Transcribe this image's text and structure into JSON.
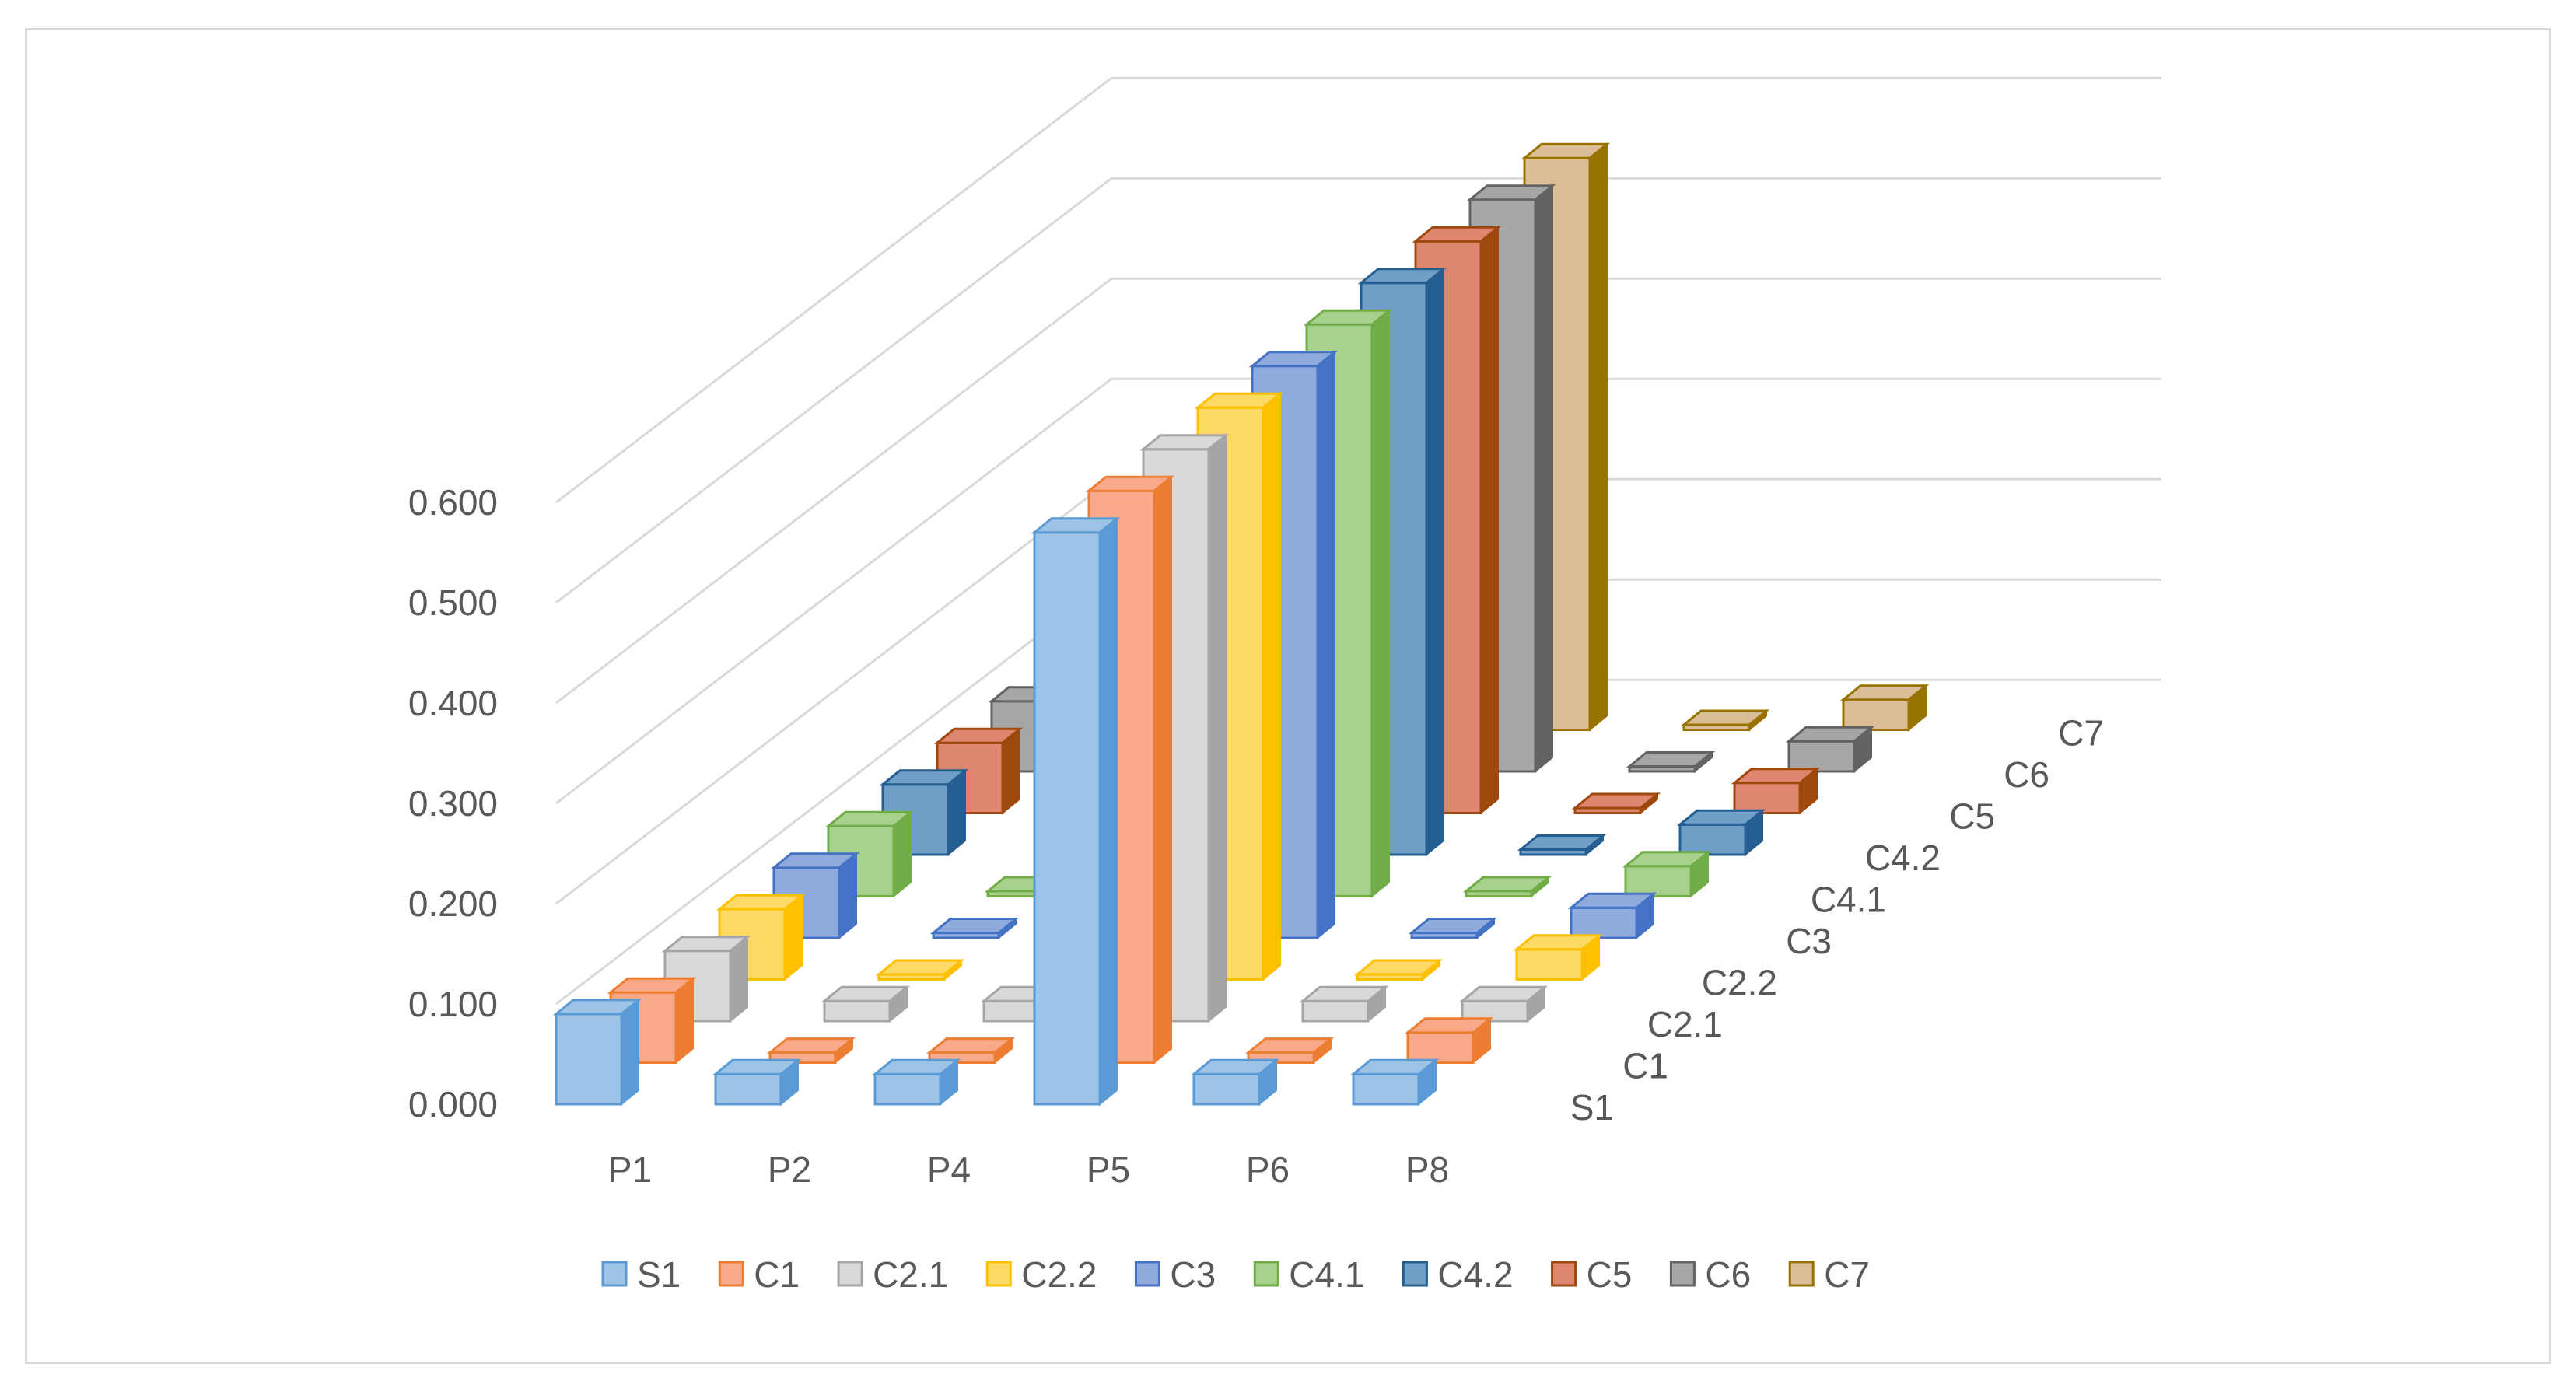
{
  "chart_data": {
    "type": "bar",
    "chart_style": "3d-clustered-column",
    "categories": [
      "P1",
      "P2",
      "P4",
      "P5",
      "P6",
      "P8"
    ],
    "y_ticks": [
      "0.000",
      "0.100",
      "0.200",
      "0.300",
      "0.400",
      "0.500",
      "0.600"
    ],
    "ylim": [
      0,
      0.6
    ],
    "grid": true,
    "legend_position": "bottom",
    "series": [
      {
        "name": "S1",
        "color": "#9dc3e6",
        "edge": "#5b9bd5",
        "values": [
          0.09,
          0.03,
          0.03,
          0.57,
          0.03,
          0.03
        ]
      },
      {
        "name": "C1",
        "color": "#f8a98a",
        "edge": "#ed7d31",
        "values": [
          0.07,
          0.01,
          0.01,
          0.57,
          0.01,
          0.03
        ]
      },
      {
        "name": "C2.1",
        "color": "#d9d9d9",
        "edge": "#a5a5a5",
        "values": [
          0.07,
          0.02,
          0.02,
          0.57,
          0.02,
          0.02
        ]
      },
      {
        "name": "C2.2",
        "color": "#ffd966",
        "edge": "#ffc000",
        "values": [
          0.07,
          0.005,
          0.005,
          0.57,
          0.005,
          0.03
        ]
      },
      {
        "name": "C3",
        "color": "#8faadc",
        "edge": "#4472c4",
        "values": [
          0.07,
          0.005,
          0.005,
          0.57,
          0.005,
          0.03
        ]
      },
      {
        "name": "C4.1",
        "color": "#a9d18e",
        "edge": "#70ad47",
        "values": [
          0.07,
          0.005,
          0.005,
          0.57,
          0.005,
          0.03
        ]
      },
      {
        "name": "C4.2",
        "color": "#6f9fc7",
        "edge": "#255e91",
        "values": [
          0.07,
          0.005,
          0.005,
          0.57,
          0.005,
          0.03
        ]
      },
      {
        "name": "C5",
        "color": "#df8670",
        "edge": "#9e480e",
        "values": [
          0.07,
          0.005,
          0.005,
          0.57,
          0.005,
          0.03
        ]
      },
      {
        "name": "C6",
        "color": "#a6a6a6",
        "edge": "#636363",
        "values": [
          0.07,
          0.005,
          0.005,
          0.57,
          0.005,
          0.03
        ]
      },
      {
        "name": "C7",
        "color": "#dbbd98",
        "edge": "#997300",
        "values": [
          0.07,
          0.005,
          0.005,
          0.57,
          0.005,
          0.03
        ]
      }
    ]
  }
}
